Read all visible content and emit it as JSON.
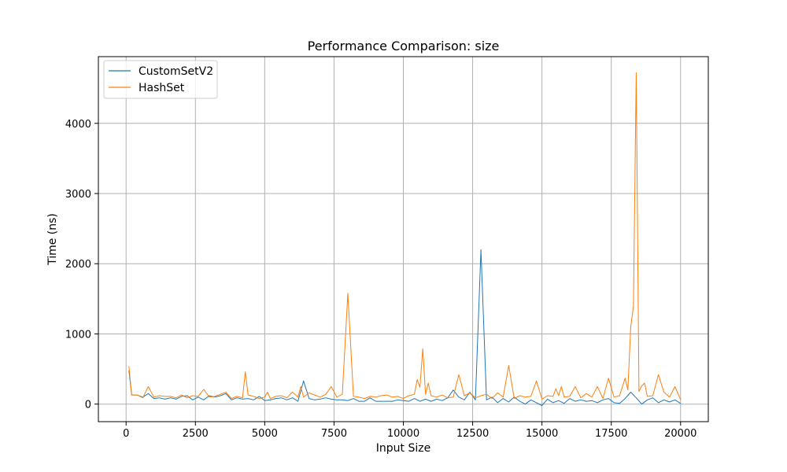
{
  "chart_data": {
    "type": "line",
    "title": "Performance Comparison: size",
    "xlabel": "Input Size",
    "ylabel": "Time (ns)",
    "xlim": [
      -1000,
      21000
    ],
    "ylim": [
      -250,
      4950
    ],
    "xticks": [
      0,
      2500,
      5000,
      7500,
      10000,
      12500,
      15000,
      17500,
      20000
    ],
    "yticks": [
      0,
      1000,
      2000,
      3000,
      4000
    ],
    "grid": true,
    "legend_position": "top-left",
    "series": [
      {
        "name": "CustomSetV2",
        "color": "#1f77b4",
        "points": [
          [
            100,
            480
          ],
          [
            200,
            130
          ],
          [
            400,
            130
          ],
          [
            600,
            100
          ],
          [
            800,
            150
          ],
          [
            1000,
            80
          ],
          [
            1200,
            90
          ],
          [
            1400,
            70
          ],
          [
            1600,
            90
          ],
          [
            1800,
            70
          ],
          [
            2000,
            110
          ],
          [
            2200,
            120
          ],
          [
            2400,
            60
          ],
          [
            2600,
            100
          ],
          [
            2800,
            60
          ],
          [
            3000,
            120
          ],
          [
            3200,
            100
          ],
          [
            3400,
            120
          ],
          [
            3600,
            150
          ],
          [
            3800,
            60
          ],
          [
            4000,
            90
          ],
          [
            4200,
            70
          ],
          [
            4400,
            80
          ],
          [
            4600,
            60
          ],
          [
            4800,
            110
          ],
          [
            5000,
            50
          ],
          [
            5200,
            60
          ],
          [
            5400,
            80
          ],
          [
            5600,
            90
          ],
          [
            5800,
            60
          ],
          [
            6000,
            90
          ],
          [
            6200,
            40
          ],
          [
            6400,
            330
          ],
          [
            6600,
            80
          ],
          [
            6800,
            60
          ],
          [
            7000,
            70
          ],
          [
            7200,
            90
          ],
          [
            7400,
            70
          ],
          [
            7600,
            60
          ],
          [
            7800,
            60
          ],
          [
            8000,
            50
          ],
          [
            8200,
            80
          ],
          [
            8400,
            40
          ],
          [
            8600,
            40
          ],
          [
            8800,
            90
          ],
          [
            9000,
            40
          ],
          [
            9200,
            40
          ],
          [
            9400,
            40
          ],
          [
            9600,
            40
          ],
          [
            9800,
            60
          ],
          [
            10000,
            50
          ],
          [
            10200,
            40
          ],
          [
            10400,
            80
          ],
          [
            10600,
            40
          ],
          [
            10800,
            70
          ],
          [
            11000,
            40
          ],
          [
            11200,
            70
          ],
          [
            11400,
            50
          ],
          [
            11600,
            90
          ],
          [
            11800,
            200
          ],
          [
            12000,
            100
          ],
          [
            12200,
            60
          ],
          [
            12400,
            170
          ],
          [
            12600,
            60
          ],
          [
            12800,
            2200
          ],
          [
            13000,
            60
          ],
          [
            13200,
            100
          ],
          [
            13400,
            20
          ],
          [
            13600,
            80
          ],
          [
            13800,
            30
          ],
          [
            14000,
            100
          ],
          [
            14200,
            40
          ],
          [
            14400,
            0
          ],
          [
            14600,
            60
          ],
          [
            14800,
            20
          ],
          [
            15000,
            -20
          ],
          [
            15200,
            70
          ],
          [
            15400,
            20
          ],
          [
            15600,
            50
          ],
          [
            15800,
            10
          ],
          [
            16000,
            80
          ],
          [
            16200,
            40
          ],
          [
            16400,
            60
          ],
          [
            16600,
            40
          ],
          [
            16800,
            50
          ],
          [
            17000,
            20
          ],
          [
            17200,
            60
          ],
          [
            17400,
            80
          ],
          [
            17600,
            20
          ],
          [
            17800,
            10
          ],
          [
            18000,
            80
          ],
          [
            18200,
            170
          ],
          [
            18400,
            90
          ],
          [
            18600,
            0
          ],
          [
            18800,
            60
          ],
          [
            19000,
            90
          ],
          [
            19200,
            20
          ],
          [
            19400,
            60
          ],
          [
            19600,
            30
          ],
          [
            19800,
            60
          ],
          [
            20000,
            10
          ]
        ]
      },
      {
        "name": "HashSet",
        "color": "#ff7f0e",
        "points": [
          [
            100,
            540
          ],
          [
            200,
            130
          ],
          [
            400,
            130
          ],
          [
            600,
            90
          ],
          [
            800,
            250
          ],
          [
            1000,
            100
          ],
          [
            1200,
            120
          ],
          [
            1400,
            110
          ],
          [
            1600,
            110
          ],
          [
            1800,
            90
          ],
          [
            2000,
            130
          ],
          [
            2200,
            90
          ],
          [
            2400,
            120
          ],
          [
            2600,
            110
          ],
          [
            2800,
            210
          ],
          [
            3000,
            100
          ],
          [
            3200,
            110
          ],
          [
            3400,
            140
          ],
          [
            3600,
            170
          ],
          [
            3800,
            80
          ],
          [
            4000,
            110
          ],
          [
            4200,
            90
          ],
          [
            4300,
            460
          ],
          [
            4400,
            130
          ],
          [
            4600,
            110
          ],
          [
            4800,
            80
          ],
          [
            5000,
            100
          ],
          [
            5100,
            170
          ],
          [
            5200,
            80
          ],
          [
            5400,
            110
          ],
          [
            5600,
            120
          ],
          [
            5800,
            90
          ],
          [
            6000,
            170
          ],
          [
            6200,
            100
          ],
          [
            6300,
            250
          ],
          [
            6400,
            100
          ],
          [
            6600,
            160
          ],
          [
            6800,
            130
          ],
          [
            7000,
            100
          ],
          [
            7200,
            140
          ],
          [
            7400,
            250
          ],
          [
            7600,
            100
          ],
          [
            7800,
            140
          ],
          [
            8000,
            1580
          ],
          [
            8200,
            110
          ],
          [
            8400,
            100
          ],
          [
            8600,
            80
          ],
          [
            8800,
            110
          ],
          [
            9000,
            100
          ],
          [
            9200,
            120
          ],
          [
            9400,
            130
          ],
          [
            9600,
            100
          ],
          [
            9800,
            110
          ],
          [
            10000,
            80
          ],
          [
            10200,
            120
          ],
          [
            10400,
            140
          ],
          [
            10500,
            350
          ],
          [
            10600,
            240
          ],
          [
            10700,
            790
          ],
          [
            10800,
            140
          ],
          [
            10900,
            300
          ],
          [
            11000,
            120
          ],
          [
            11200,
            100
          ],
          [
            11400,
            130
          ],
          [
            11600,
            90
          ],
          [
            11800,
            100
          ],
          [
            12000,
            420
          ],
          [
            12200,
            120
          ],
          [
            12400,
            160
          ],
          [
            12600,
            90
          ],
          [
            12800,
            120
          ],
          [
            13000,
            140
          ],
          [
            13200,
            80
          ],
          [
            13400,
            160
          ],
          [
            13600,
            100
          ],
          [
            13800,
            550
          ],
          [
            14000,
            80
          ],
          [
            14200,
            120
          ],
          [
            14400,
            100
          ],
          [
            14600,
            110
          ],
          [
            14800,
            330
          ],
          [
            15000,
            70
          ],
          [
            15200,
            120
          ],
          [
            15400,
            110
          ],
          [
            15500,
            220
          ],
          [
            15600,
            120
          ],
          [
            15700,
            250
          ],
          [
            15800,
            100
          ],
          [
            16000,
            110
          ],
          [
            16200,
            250
          ],
          [
            16400,
            90
          ],
          [
            16600,
            150
          ],
          [
            16800,
            100
          ],
          [
            17000,
            250
          ],
          [
            17200,
            80
          ],
          [
            17400,
            370
          ],
          [
            17600,
            100
          ],
          [
            17800,
            120
          ],
          [
            18000,
            370
          ],
          [
            18100,
            200
          ],
          [
            18200,
            1100
          ],
          [
            18300,
            1400
          ],
          [
            18400,
            4720
          ],
          [
            18500,
            180
          ],
          [
            18600,
            260
          ],
          [
            18700,
            300
          ],
          [
            18800,
            110
          ],
          [
            19000,
            120
          ],
          [
            19200,
            420
          ],
          [
            19400,
            170
          ],
          [
            19600,
            100
          ],
          [
            19800,
            250
          ],
          [
            20000,
            60
          ]
        ]
      }
    ]
  }
}
